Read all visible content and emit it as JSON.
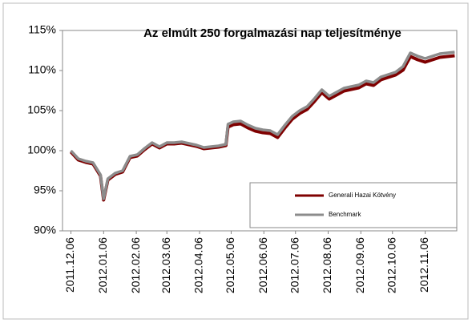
{
  "chart_data": {
    "type": "line",
    "title": "Az elmúlt 250 forgalmazási nap teljesítménye",
    "x": [
      "2011.12.06",
      "2011.12.13",
      "2011.12.20",
      "2011.12.27",
      "2012.01.03",
      "2012.01.06",
      "2012.01.10",
      "2012.01.17",
      "2012.01.24",
      "2012.01.31",
      "2012.02.07",
      "2012.02.14",
      "2012.02.21",
      "2012.02.28",
      "2012.03.06",
      "2012.03.13",
      "2012.03.20",
      "2012.03.27",
      "2012.04.03",
      "2012.04.10",
      "2012.04.17",
      "2012.04.24",
      "2012.05.01",
      "2012.05.03",
      "2012.05.08",
      "2012.05.15",
      "2012.05.22",
      "2012.05.29",
      "2012.06.05",
      "2012.06.12",
      "2012.06.19",
      "2012.06.26",
      "2012.07.03",
      "2012.07.10",
      "2012.07.17",
      "2012.07.24",
      "2012.07.31",
      "2012.08.07",
      "2012.08.14",
      "2012.08.21",
      "2012.08.28",
      "2012.09.04",
      "2012.09.11",
      "2012.09.18",
      "2012.09.25",
      "2012.10.02",
      "2012.10.09",
      "2012.10.16",
      "2012.10.23",
      "2012.10.30",
      "2012.11.06",
      "2012.11.13",
      "2012.11.20",
      "2012.11.27",
      "2012.12.04"
    ],
    "series": [
      {
        "name": "Generali Hazai Kötvény",
        "color": "#7f0000",
        "values": [
          100,
          99.0,
          98.7,
          98.5,
          97.0,
          94.0,
          96.5,
          97.2,
          97.5,
          99.3,
          99.5,
          100.3,
          101.0,
          100.5,
          101.0,
          101.0,
          101.1,
          100.9,
          100.7,
          100.4,
          100.5,
          100.6,
          100.8,
          103.1,
          103.4,
          103.5,
          103.0,
          102.6,
          102.4,
          102.3,
          101.8,
          103.0,
          104.1,
          104.8,
          105.3,
          106.3,
          107.4,
          106.6,
          107.1,
          107.6,
          107.8,
          108.0,
          108.5,
          108.3,
          109.0,
          109.3,
          109.6,
          110.2,
          111.9,
          111.5,
          111.2,
          111.5,
          111.8,
          111.9,
          112.0
        ]
      },
      {
        "name": "Benchmark",
        "color": "#8c8c8c",
        "values": [
          100,
          99.0,
          98.7,
          98.5,
          97.0,
          94.0,
          96.5,
          97.2,
          97.5,
          99.3,
          99.5,
          100.3,
          101.0,
          100.5,
          101.0,
          101.0,
          101.1,
          100.9,
          100.7,
          100.4,
          100.5,
          100.6,
          100.8,
          103.3,
          103.6,
          103.7,
          103.2,
          102.8,
          102.6,
          102.5,
          102.0,
          103.2,
          104.3,
          105.0,
          105.5,
          106.5,
          107.6,
          106.8,
          107.3,
          107.8,
          108.0,
          108.2,
          108.7,
          108.5,
          109.2,
          109.5,
          109.8,
          110.5,
          112.2,
          111.8,
          111.5,
          111.8,
          112.1,
          112.2,
          112.3
        ]
      }
    ],
    "xlim": [
      "2011.11.28",
      "2012.12.06"
    ],
    "xticks": [
      "2011.12.06",
      "2012.01.06",
      "2012.02.06",
      "2012.03.06",
      "2012.04.06",
      "2012.05.06",
      "2012.06.06",
      "2012.07.06",
      "2012.08.06",
      "2012.09.06",
      "2012.10.06",
      "2012.11.06"
    ],
    "ylim": [
      90,
      115
    ],
    "yticks": [
      {
        "value": 90,
        "label": "90%"
      },
      {
        "value": 95,
        "label": "95%"
      },
      {
        "value": 100,
        "label": "100%"
      },
      {
        "value": 105,
        "label": "105%"
      },
      {
        "value": 110,
        "label": "110%"
      },
      {
        "value": 115,
        "label": "115%"
      }
    ],
    "legend": "lower right",
    "grid": false
  }
}
